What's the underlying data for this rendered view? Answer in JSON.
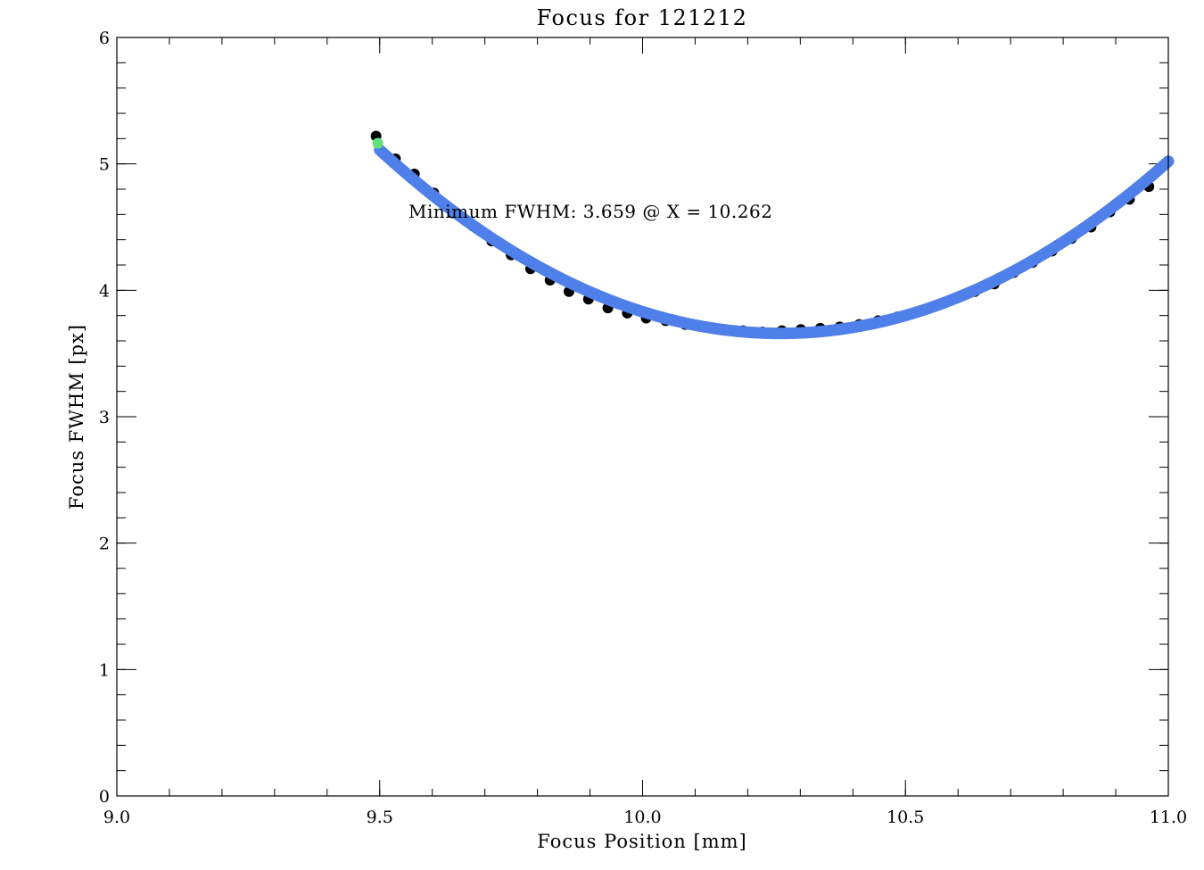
{
  "chart_data": {
    "type": "scatter",
    "title": "Focus for 121212",
    "xlabel": "Focus Position [mm]",
    "ylabel": "Focus FWHM [px]",
    "xlim": [
      9.0,
      11.0
    ],
    "ylim": [
      0,
      6
    ],
    "x_ticks": [
      9.0,
      9.5,
      10.0,
      10.5,
      11.0
    ],
    "x_tick_labels": [
      "9.0",
      "9.5",
      "10.0",
      "10.5",
      "11.0"
    ],
    "x_minor_step": 0.1,
    "y_ticks": [
      0,
      1,
      2,
      3,
      4,
      5,
      6
    ],
    "y_tick_labels": [
      "0",
      "1",
      "2",
      "3",
      "4",
      "5",
      "6"
    ],
    "y_minor_step": 0.2,
    "grid": false,
    "annotation": "Minimum FWHM: 3.659 @ X = 10.262",
    "colors": {
      "data_points": "#000000",
      "fit_curve": "#4f7fe8",
      "highlight_point": "#66e07a",
      "axes": "#000000"
    },
    "series": [
      {
        "kind": "points",
        "x": [
          9.493,
          9.53,
          9.566,
          9.603,
          9.64,
          9.677,
          9.713,
          9.75,
          9.787,
          9.824,
          9.86,
          9.897,
          9.934,
          9.971,
          10.007,
          10.044,
          10.081,
          10.118,
          10.154,
          10.191,
          10.228,
          10.265,
          10.301,
          10.338,
          10.375,
          10.412,
          10.448,
          10.485,
          10.522,
          10.559,
          10.595,
          10.632,
          10.669,
          10.706,
          10.742,
          10.779,
          10.816,
          10.853,
          10.889,
          10.926,
          10.963
        ],
        "y": [
          5.22,
          5.04,
          4.92,
          4.77,
          4.61,
          4.51,
          4.39,
          4.28,
          4.17,
          4.08,
          3.99,
          3.93,
          3.86,
          3.82,
          3.78,
          3.76,
          3.73,
          3.71,
          3.69,
          3.68,
          3.67,
          3.68,
          3.69,
          3.7,
          3.71,
          3.73,
          3.76,
          3.79,
          3.83,
          3.88,
          3.94,
          3.99,
          4.05,
          4.14,
          4.22,
          4.31,
          4.41,
          4.5,
          4.62,
          4.72,
          4.82
        ]
      },
      {
        "kind": "fit",
        "equation": "FWHM = 3.659 + 2.5 * (x - 10.262)^2",
        "x_range": [
          9.5,
          11.0
        ]
      }
    ]
  }
}
